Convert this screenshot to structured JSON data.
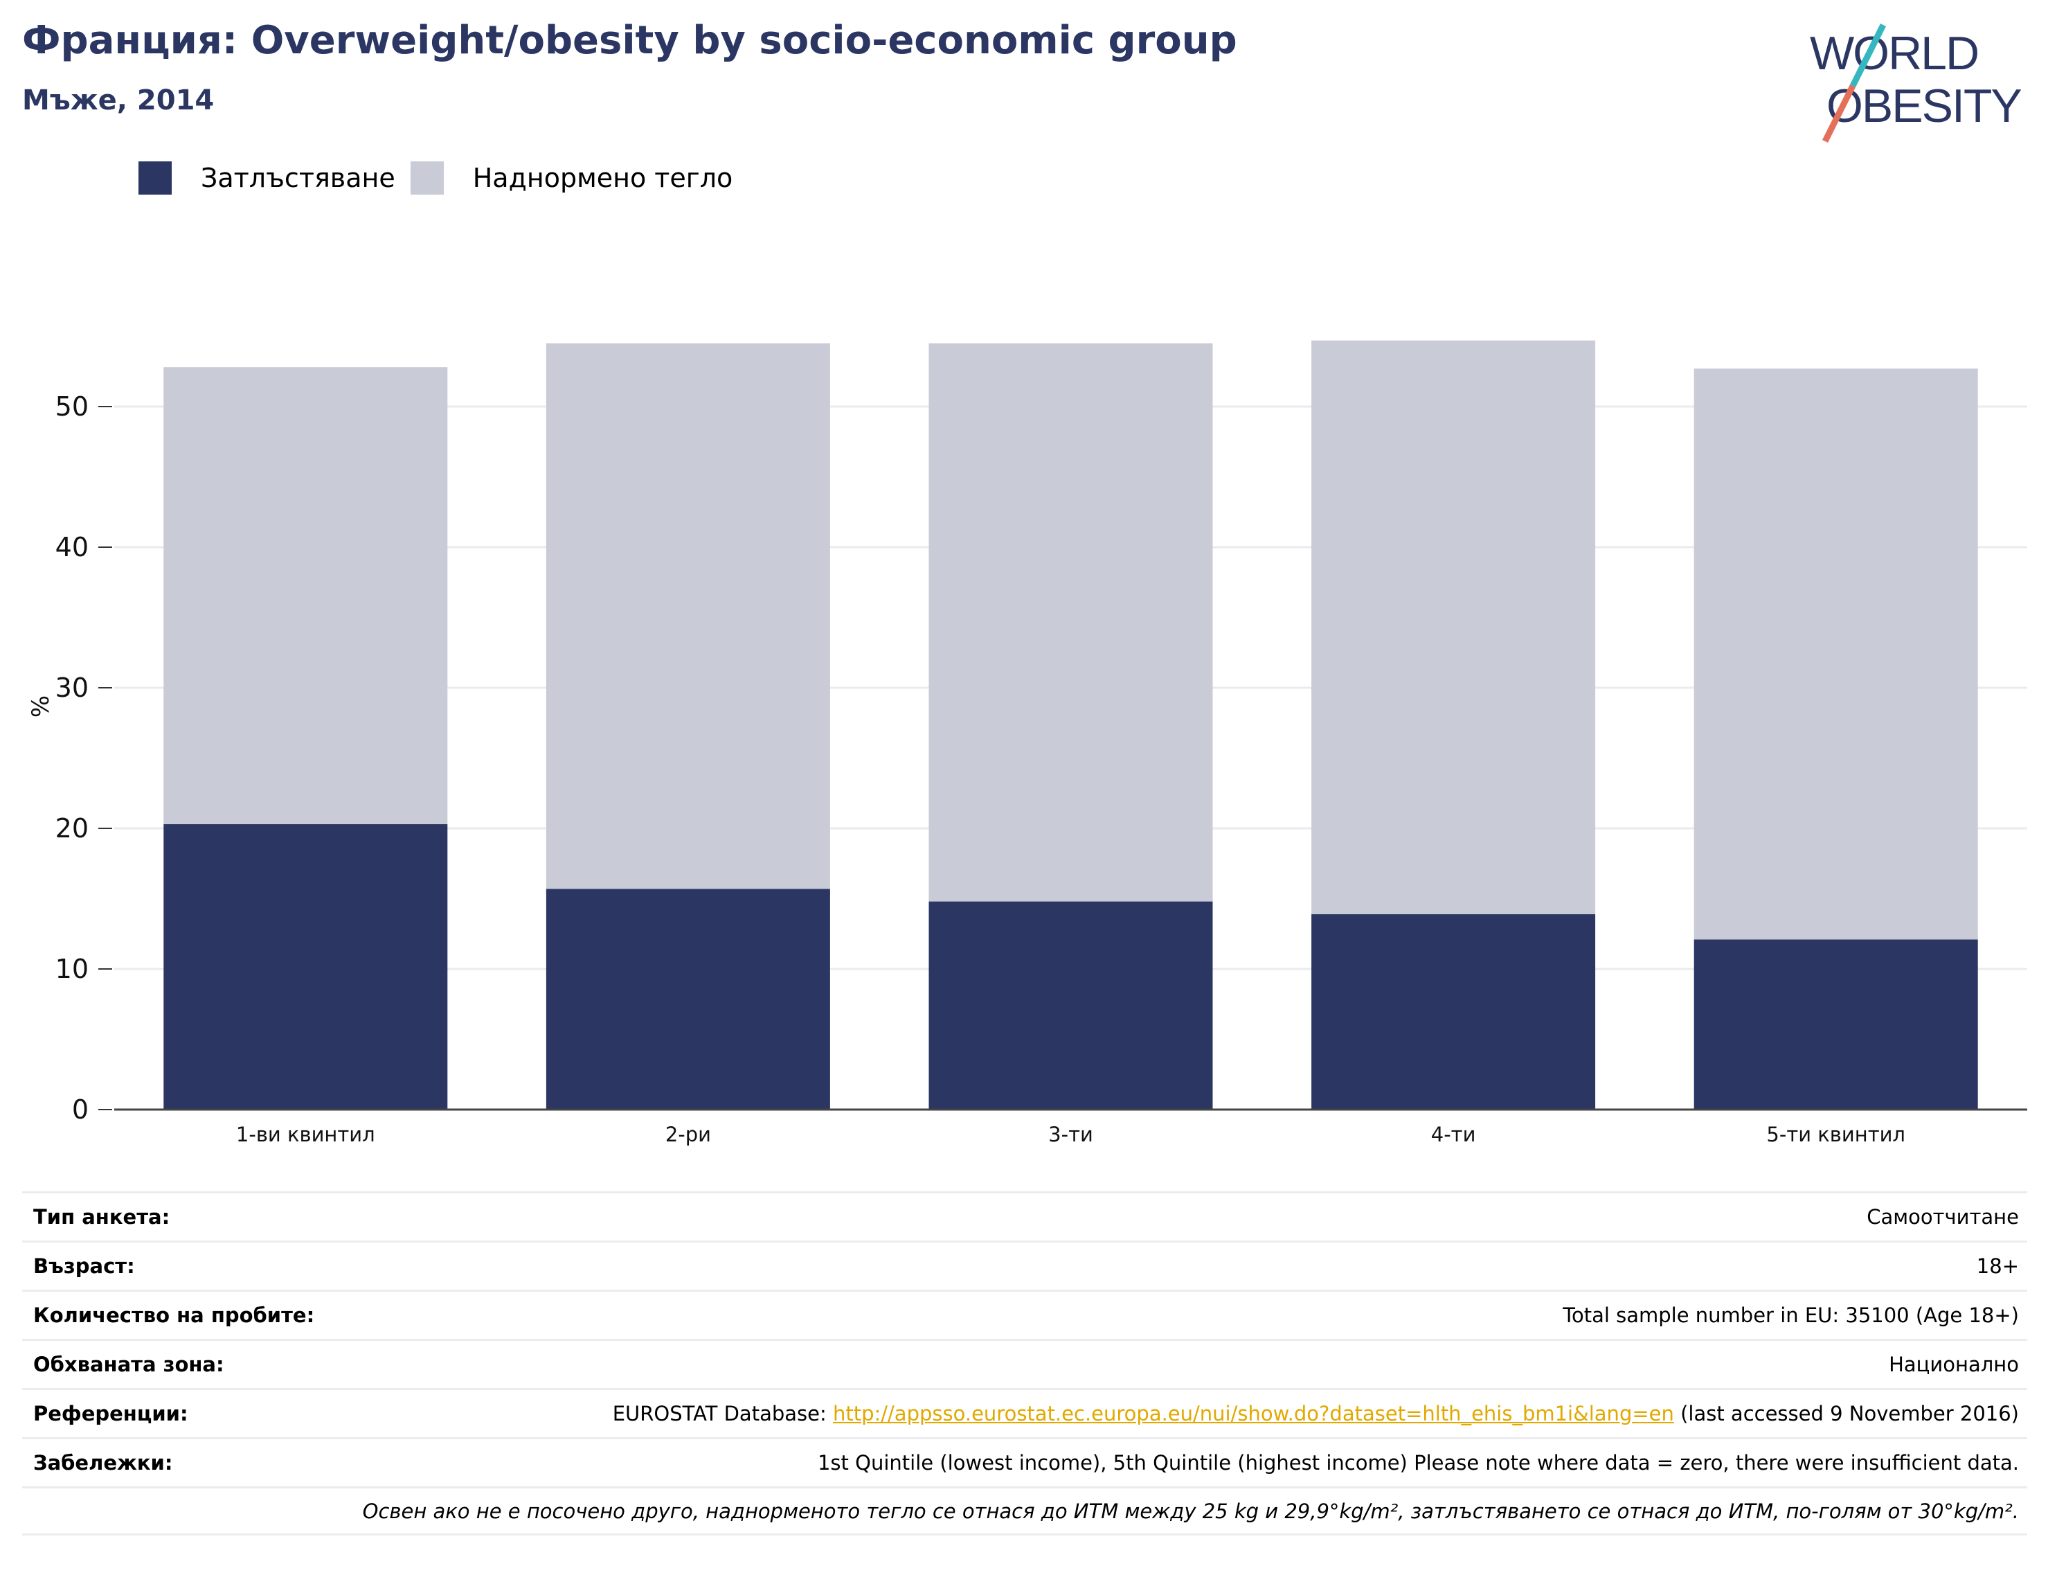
{
  "header": {
    "title": "Франция: Overweight/obesity by socio-economic group",
    "subtitle": "Мъже, 2014"
  },
  "logo": {
    "line1": "WORLD",
    "line2": "OBESITY",
    "colors": {
      "text": "#2b3663",
      "slash_top": "#35b7c0",
      "slash_bottom": "#e5705a"
    }
  },
  "legend": {
    "items": [
      {
        "label": "Затлъстяване",
        "color": "#2b3663"
      },
      {
        "label": "Наднормено тегло",
        "color": "#c9cbd6"
      }
    ]
  },
  "chart_data": {
    "type": "bar",
    "stacked": true,
    "categories": [
      "1-ви квинтил",
      "2-ри",
      "3-ти",
      "4-ти",
      "5-ти квинтил"
    ],
    "series": [
      {
        "name": "Затлъстяване",
        "color": "#2b3663",
        "values": [
          20.3,
          15.7,
          14.8,
          13.9,
          12.1
        ]
      },
      {
        "name": "Наднормено тегло",
        "color": "#c9cbd6",
        "values": [
          32.5,
          38.8,
          39.7,
          40.8,
          40.6
        ]
      }
    ],
    "ylabel": "%",
    "xlabel": "",
    "ylim": [
      0,
      60
    ],
    "yticks": [
      0,
      10,
      20,
      30,
      40,
      50
    ],
    "grid": true
  },
  "meta": {
    "survey_type": {
      "label": "Тип анкета:",
      "value": "Самоотчитане"
    },
    "age": {
      "label": "Възраст:",
      "value": "18+"
    },
    "sample": {
      "label": "Количество на пробите:",
      "value": "Total sample number in EU: 35100 (Age 18+)"
    },
    "area": {
      "label": "Обхваната зона:",
      "value": "Национално"
    },
    "references": {
      "label": "Референции:",
      "prefix": "EUROSTAT Database: ",
      "link": "http://appsso.eurostat.ec.europa.eu/nui/show.do?dataset=hlth_ehis_bm1i&lang=en",
      "suffix": " (last accessed 9 November 2016)"
    },
    "notes": {
      "label": "Забележки:",
      "value": "1st Quintile (lowest income), 5th Quintile (highest income) Please note where data = zero, there were insufficient data."
    },
    "footnote": "Освен ако не е посочено друго, наднорменото тегло се отнася до ИТМ между 25 kg и 29,9°kg/m², затлъстяването се отнася до ИТМ, по-голям от 30°kg/m²."
  }
}
